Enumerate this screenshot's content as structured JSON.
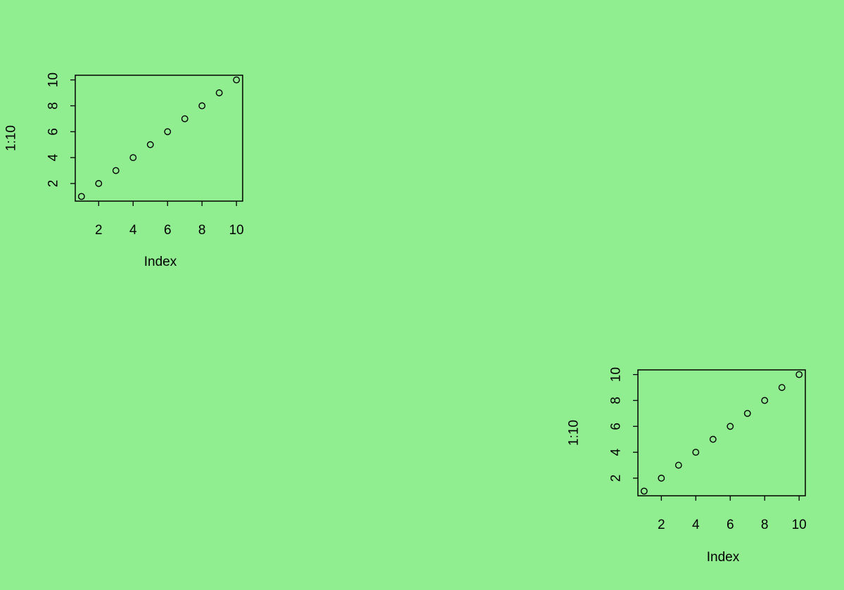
{
  "page": {
    "background": "#90EE90"
  },
  "chart_data": [
    {
      "type": "scatter",
      "title": "",
      "xlabel": "Index",
      "ylabel": "1:10",
      "x": [
        1,
        2,
        3,
        4,
        5,
        6,
        7,
        8,
        9,
        10
      ],
      "y": [
        1,
        2,
        3,
        4,
        5,
        6,
        7,
        8,
        9,
        10
      ],
      "xlim": [
        0.64,
        10.36
      ],
      "ylim": [
        0.64,
        10.36
      ],
      "xticks": [
        2,
        4,
        6,
        8,
        10
      ],
      "yticks": [
        2,
        4,
        6,
        8,
        10
      ],
      "marker": "open-circle",
      "grid": false,
      "legend": "none"
    },
    {
      "type": "scatter",
      "title": "",
      "xlabel": "Index",
      "ylabel": "1:10",
      "x": [
        1,
        2,
        3,
        4,
        5,
        6,
        7,
        8,
        9,
        10
      ],
      "y": [
        1,
        2,
        3,
        4,
        5,
        6,
        7,
        8,
        9,
        10
      ],
      "xlim": [
        0.64,
        10.36
      ],
      "ylim": [
        0.64,
        10.36
      ],
      "xticks": [
        2,
        4,
        6,
        8,
        10
      ],
      "yticks": [
        2,
        4,
        6,
        8,
        10
      ],
      "marker": "open-circle",
      "grid": false,
      "legend": "none"
    }
  ]
}
